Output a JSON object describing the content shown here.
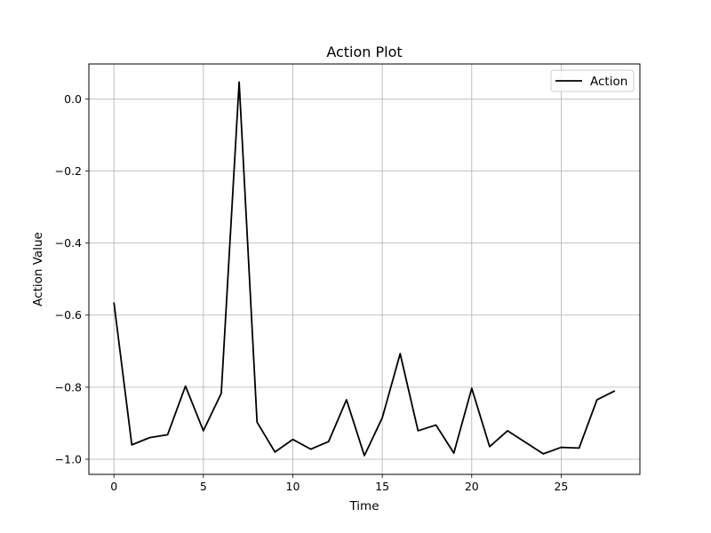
{
  "chart_data": {
    "type": "line",
    "title": "Action Plot",
    "xlabel": "Time",
    "ylabel": "Action Value",
    "xlim": [
      -1.4,
      29.4
    ],
    "ylim": [
      -1.042,
      0.097
    ],
    "xticks": [
      0,
      5,
      10,
      15,
      20,
      25
    ],
    "xtick_labels": [
      "0",
      "5",
      "10",
      "15",
      "20",
      "25"
    ],
    "yticks": [
      0.0,
      -0.2,
      -0.4,
      -0.6,
      -0.8,
      -1.0
    ],
    "ytick_labels": [
      "0.0",
      "−0.2",
      "−0.4",
      "−0.6",
      "−0.8",
      "−1.0"
    ],
    "grid": true,
    "legend_position": "top-right",
    "series": [
      {
        "name": "Action",
        "color": "#000000",
        "x": [
          0,
          1,
          2,
          3,
          4,
          5,
          6,
          7,
          8,
          9,
          10,
          11,
          12,
          13,
          14,
          15,
          16,
          17,
          18,
          19,
          20,
          21,
          22,
          23,
          24,
          25,
          26,
          27,
          28
        ],
        "y": [
          -0.565,
          -0.96,
          -0.94,
          -0.932,
          -0.797,
          -0.921,
          -0.817,
          0.047,
          -0.897,
          -0.98,
          -0.945,
          -0.972,
          -0.951,
          -0.835,
          -0.99,
          -0.885,
          -0.707,
          -0.921,
          -0.905,
          -0.983,
          -0.803,
          -0.965,
          -0.921,
          -0.953,
          -0.985,
          -0.967,
          -0.969,
          -0.835,
          -0.81
        ]
      }
    ]
  }
}
